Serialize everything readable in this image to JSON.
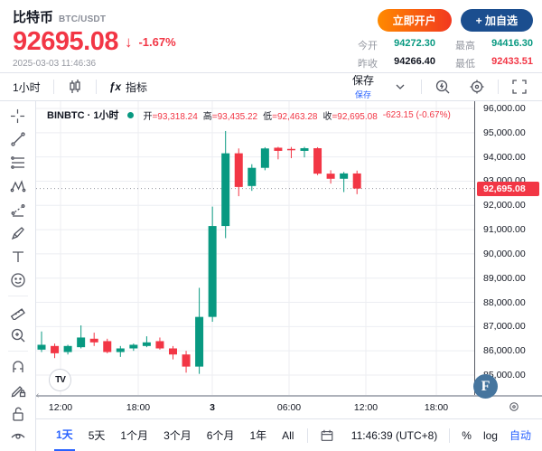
{
  "header": {
    "symbol_name": "比特币",
    "symbol_pair": "BTC/USDT",
    "price": "92695.08",
    "down_arrow": "↓",
    "change_pct": "-1.67%",
    "timestamp": "2025-03-03 11:46:36",
    "open_account_btn": "立即开户",
    "add_watchlist_btn": "+ 加自选",
    "stats": [
      {
        "label": "今开",
        "value": "94272.30",
        "color": "green"
      },
      {
        "label": "最高",
        "value": "94416.30",
        "color": "green"
      },
      {
        "label": "昨收",
        "value": "94266.40",
        "color": "dark"
      },
      {
        "label": "最低",
        "value": "92433.51",
        "color": "red"
      }
    ]
  },
  "toolbar": {
    "interval": "1小时",
    "fx_glyph": "ƒx",
    "indicators": "指标",
    "save": "保存",
    "save_tooltip": "保存",
    "icons": [
      "candle-style-icon",
      "chevron-down-icon",
      "quick-search-icon",
      "settings-gear-icon",
      "fullscreen-icon"
    ]
  },
  "left_toolbar": {
    "tools": [
      "crosshair",
      "trend-line",
      "fib-retracement",
      "xabcd-pattern",
      "forecast",
      "brush",
      "text",
      "emoji",
      "ruler",
      "zoom-in",
      "magnet",
      "drawing-lock",
      "lock-all",
      "hide-drawings"
    ]
  },
  "legend": {
    "series": "BINBTC · 1小时",
    "segments": [
      {
        "label": "开",
        "value": "=93,318.24"
      },
      {
        "label": "高",
        "value": "=93,435.22"
      },
      {
        "label": "低",
        "value": "=92,463.28"
      },
      {
        "label": "收",
        "value": "=92,695.08"
      },
      {
        "label": "",
        "value": "-623.15 (-0.67%)"
      }
    ]
  },
  "chart_data": {
    "type": "candlestick",
    "symbol": "BINBTC",
    "interval": "1小时",
    "title": "BINBTC · 1小时",
    "ohlc_current": {
      "open": 93318.24,
      "high": 93435.22,
      "low": 92463.28,
      "close": 92695.08,
      "change": -623.15,
      "change_pct": "-0.67%"
    },
    "last_price": 92695.08,
    "y_min": 85000,
    "y_max": 96000,
    "y_step": 1000,
    "grid": true,
    "up_color": "#089981",
    "down_color": "#f23645",
    "candles": [
      [
        86050,
        86800,
        85950,
        86250
      ],
      [
        86200,
        86300,
        85700,
        85900
      ],
      [
        85950,
        86250,
        85850,
        86200
      ],
      [
        86150,
        87050,
        86100,
        86550
      ],
      [
        86500,
        86750,
        86200,
        86350
      ],
      [
        86400,
        86500,
        85900,
        85950
      ],
      [
        85950,
        86200,
        85750,
        86100
      ],
      [
        86100,
        86300,
        86000,
        86250
      ],
      [
        86200,
        86600,
        86150,
        86350
      ],
      [
        86400,
        86550,
        86050,
        86100
      ],
      [
        86100,
        86200,
        85650,
        85850
      ],
      [
        85850,
        86000,
        85100,
        85350
      ],
      [
        85350,
        88600,
        85050,
        87400
      ],
      [
        87400,
        91950,
        87200,
        91150
      ],
      [
        91150,
        95070,
        90650,
        94150
      ],
      [
        94150,
        94350,
        92380,
        92760
      ],
      [
        92800,
        93700,
        92600,
        93550
      ],
      [
        93550,
        94400,
        93450,
        94350
      ],
      [
        94380,
        94416,
        93900,
        94250
      ],
      [
        94330,
        94410,
        93950,
        94280
      ],
      [
        94250,
        94416,
        93980,
        94360
      ],
      [
        94360,
        94400,
        93250,
        93310
      ],
      [
        93310,
        93450,
        92900,
        93100
      ],
      [
        93100,
        93380,
        92550,
        93320
      ],
      [
        93318.24,
        93435.22,
        92463.28,
        92695.08
      ]
    ],
    "x_ticks": [
      {
        "label": "12:00",
        "x": 27,
        "bold": false
      },
      {
        "label": "18:00",
        "x": 113,
        "bold": false
      },
      {
        "label": "3",
        "x": 195,
        "bold": true
      },
      {
        "label": "06:00",
        "x": 280,
        "bold": false
      },
      {
        "label": "12:00",
        "x": 365,
        "bold": false
      },
      {
        "label": "18:00",
        "x": 443,
        "bold": false
      }
    ]
  },
  "branding": {
    "tv_logo": "TV",
    "f_logo": "F"
  },
  "x_axis": {
    "collapse_handle": "‹"
  },
  "bottom_bar": {
    "ranges": [
      "1天",
      "5天",
      "1个月",
      "3个月",
      "6个月",
      "1年",
      "All"
    ],
    "active_range": "1天",
    "clock": "11:46:39 (UTC+8)",
    "percent": "%",
    "log": "log",
    "auto": "自动"
  },
  "colors": {
    "up": "#089981",
    "down": "#f23645",
    "accent_blue": "#2962ff",
    "open_btn_gradient": [
      "#ff8a00",
      "#f2381f"
    ],
    "watch_btn": "#1b4e8f",
    "f_logo_bg": "#46759e"
  }
}
